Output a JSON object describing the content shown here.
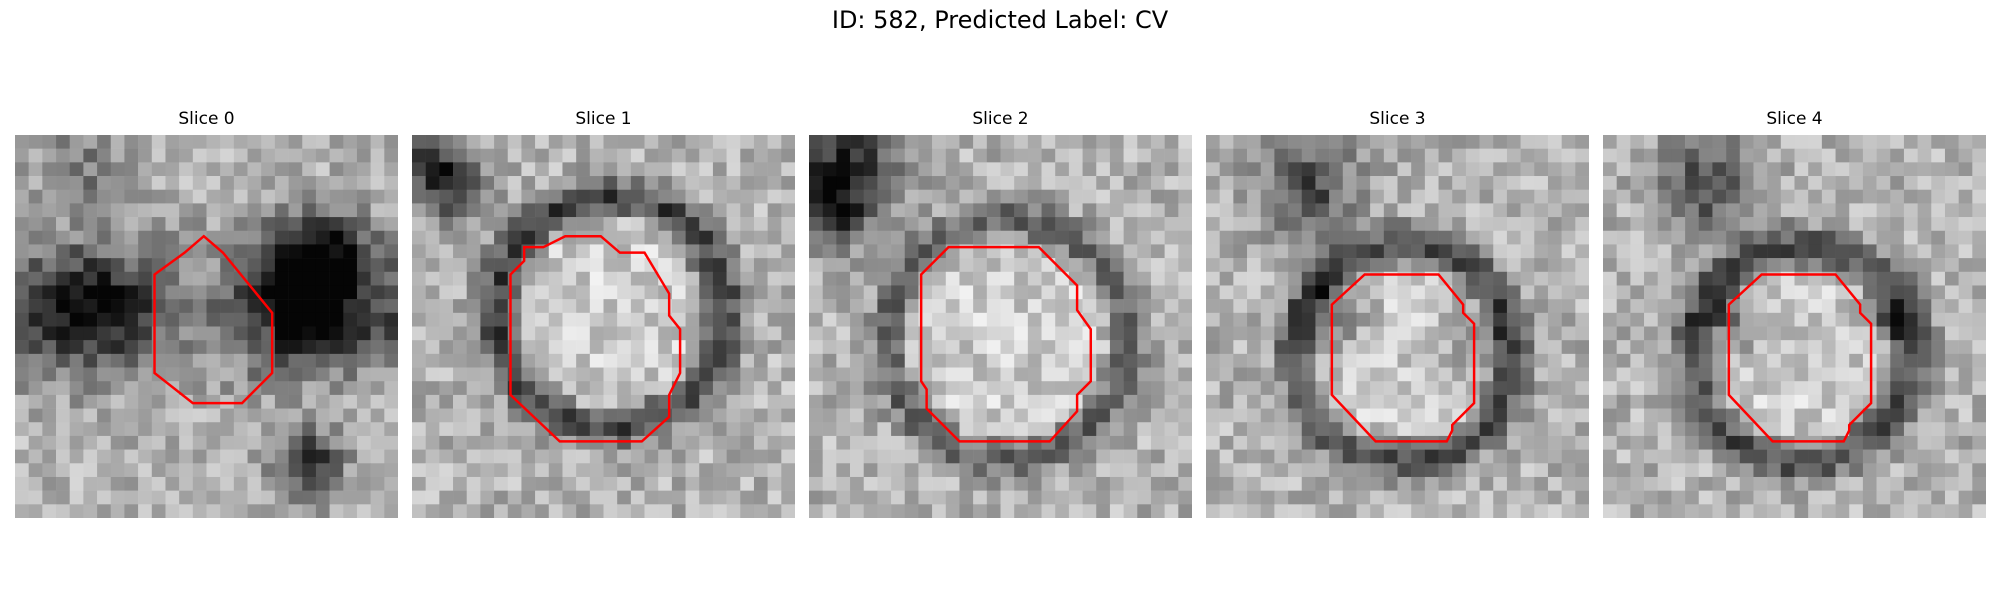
{
  "figure": {
    "title": "ID: 582, Predicted Label: CV",
    "contour_color": "#ff0000",
    "grid_size": 28,
    "panels": [
      {
        "title": "Slice 0",
        "seed": 11,
        "contour": [
          [
            13.8,
            7.4
          ],
          [
            15.2,
            8.6
          ],
          [
            18.8,
            13.0
          ],
          [
            18.8,
            17.4
          ],
          [
            16.6,
            19.6
          ],
          [
            13.0,
            19.6
          ],
          [
            10.2,
            17.4
          ],
          [
            10.2,
            10.2
          ],
          [
            12.4,
            8.6
          ]
        ],
        "ring_r": 6.5,
        "center": [
          14.5,
          13.5
        ],
        "dark_blobs": [
          [
            20.5,
            11.5,
            4.5,
            0.9
          ],
          [
            23.0,
            8.5,
            3.0,
            0.7
          ],
          [
            5.5,
            12.5,
            4.5,
            0.6
          ],
          [
            21.5,
            24.0,
            2.5,
            0.9
          ],
          [
            4.5,
            2.5,
            3.0,
            0.4
          ]
        ],
        "style": "dark"
      },
      {
        "title": "Slice 1",
        "seed": 23,
        "contour": [
          [
            11.2,
            7.4
          ],
          [
            13.8,
            7.4
          ],
          [
            15.2,
            8.6
          ],
          [
            17.0,
            8.6
          ],
          [
            18.8,
            11.6
          ],
          [
            18.8,
            13.2
          ],
          [
            19.6,
            14.2
          ],
          [
            19.6,
            17.4
          ],
          [
            18.8,
            19.0
          ],
          [
            18.8,
            20.6
          ],
          [
            16.8,
            22.4
          ],
          [
            10.8,
            22.4
          ],
          [
            7.2,
            19.0
          ],
          [
            7.2,
            10.2
          ],
          [
            8.2,
            9.2
          ],
          [
            8.2,
            8.2
          ],
          [
            9.6,
            8.2
          ]
        ],
        "ring_r": 8.4,
        "center": [
          14.5,
          13.0
        ],
        "dark_blobs": [
          [
            1.5,
            2.5,
            2.5,
            0.9
          ],
          [
            3.5,
            4.5,
            2.0,
            0.5
          ]
        ],
        "style": "ring"
      },
      {
        "title": "Slice 2",
        "seed": 37,
        "contour": [
          [
            10.2,
            8.2
          ],
          [
            16.8,
            8.2
          ],
          [
            19.6,
            11.0
          ],
          [
            19.6,
            12.8
          ],
          [
            20.6,
            14.2
          ],
          [
            20.6,
            18.0
          ],
          [
            19.6,
            19.0
          ],
          [
            19.6,
            20.2
          ],
          [
            17.6,
            22.4
          ],
          [
            11.0,
            22.4
          ],
          [
            8.6,
            20.0
          ],
          [
            8.6,
            18.6
          ],
          [
            8.2,
            18.0
          ],
          [
            8.2,
            10.2
          ]
        ],
        "ring_r": 8.8,
        "center": [
          14.5,
          15.0
        ],
        "dark_blobs": [
          [
            2.5,
            2.5,
            4.0,
            0.9
          ],
          [
            1.5,
            5.5,
            2.5,
            0.6
          ]
        ],
        "style": "ring_faint"
      },
      {
        "title": "Slice 3",
        "seed": 49,
        "contour": [
          [
            11.6,
            10.2
          ],
          [
            17.0,
            10.2
          ],
          [
            18.8,
            12.4
          ],
          [
            18.8,
            13.0
          ],
          [
            19.6,
            13.8
          ],
          [
            19.6,
            19.6
          ],
          [
            18.0,
            21.2
          ],
          [
            18.0,
            21.6
          ],
          [
            17.6,
            22.4
          ],
          [
            12.4,
            22.4
          ],
          [
            9.2,
            19.0
          ],
          [
            9.2,
            12.4
          ]
        ],
        "ring_r": 8.0,
        "center": [
          14.5,
          16.0
        ],
        "dark_blobs": [
          [
            7.5,
            4.0,
            3.5,
            0.7
          ],
          [
            9.5,
            13.0,
            2.5,
            0.5
          ],
          [
            20.0,
            15.5,
            3.0,
            0.4
          ]
        ],
        "style": "ring_soft"
      },
      {
        "title": "Slice 4",
        "seed": 61,
        "contour": [
          [
            11.6,
            10.2
          ],
          [
            17.0,
            10.2
          ],
          [
            18.8,
            12.4
          ],
          [
            18.8,
            13.0
          ],
          [
            19.6,
            13.8
          ],
          [
            19.6,
            19.6
          ],
          [
            18.0,
            21.2
          ],
          [
            18.0,
            21.6
          ],
          [
            17.6,
            22.4
          ],
          [
            12.4,
            22.4
          ],
          [
            9.2,
            19.0
          ],
          [
            9.2,
            12.4
          ]
        ],
        "ring_r": 8.0,
        "center": [
          14.5,
          16.0
        ],
        "dark_blobs": [
          [
            7.5,
            3.5,
            3.5,
            0.7
          ],
          [
            9.5,
            13.5,
            2.5,
            0.5
          ],
          [
            21.5,
            13.5,
            2.5,
            0.4
          ]
        ],
        "style": "ring_soft"
      }
    ]
  }
}
